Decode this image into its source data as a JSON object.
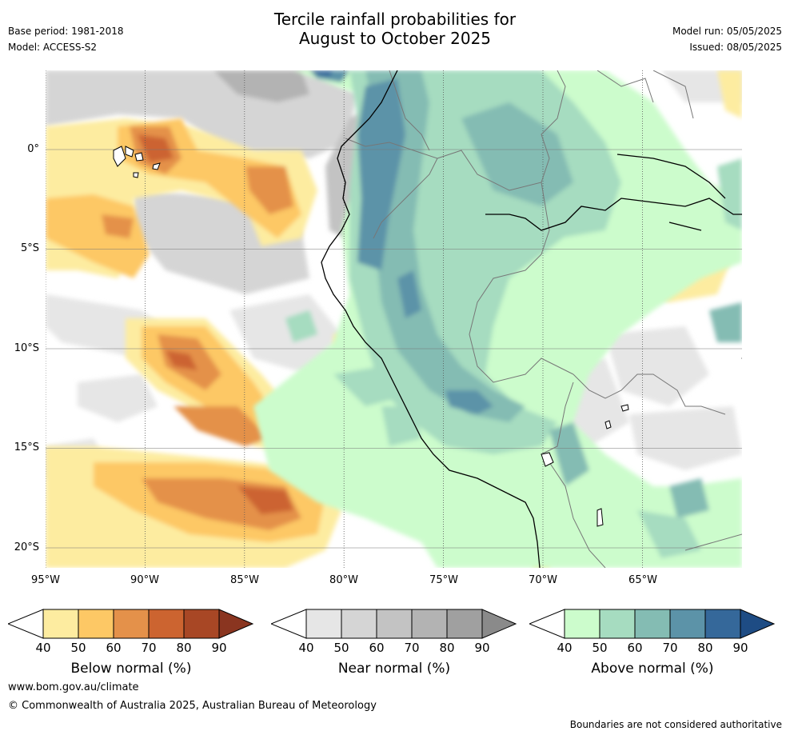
{
  "title_line1": "Tercile rainfall probabilities for",
  "title_line2": "August to October 2025",
  "meta": {
    "base_period": "Base period: 1981-2018",
    "model": "Model: ACCESS-S2",
    "model_run": "Model run: 05/05/2025",
    "issued": "Issued: 08/05/2025"
  },
  "map": {
    "lon_ticks": [
      "95°W",
      "90°W",
      "85°W",
      "80°W",
      "75°W",
      "70°W",
      "65°W"
    ],
    "lat_ticks": [
      "0°",
      "5°S",
      "10°S",
      "15°S",
      "20°S"
    ]
  },
  "colorbars": [
    {
      "label": "Below normal (%)",
      "ticks": [
        "40",
        "50",
        "60",
        "70",
        "80",
        "90"
      ],
      "colors": [
        "#fdeca0",
        "#fdc865",
        "#e4914a",
        "#cc6430",
        "#a84725",
        "#8a3520"
      ]
    },
    {
      "label": "Near normal (%)",
      "ticks": [
        "40",
        "50",
        "60",
        "70",
        "80",
        "90"
      ],
      "colors": [
        "#e6e6e6",
        "#d5d5d5",
        "#c3c3c3",
        "#b3b3b3",
        "#a0a0a0",
        "#8a8a8a"
      ]
    },
    {
      "label": "Above normal (%)",
      "ticks": [
        "40",
        "50",
        "60",
        "70",
        "80",
        "90"
      ],
      "colors": [
        "#ccfccc",
        "#a6dcc0",
        "#84bcb3",
        "#5c93a8",
        "#35689a",
        "#1e4c84"
      ]
    }
  ],
  "footer": {
    "url": "www.bom.gov.au/climate",
    "copyright": "© Commonwealth of Australia 2025, Australian Bureau of Meteorology",
    "note": "Boundaries are not considered authoritative"
  }
}
